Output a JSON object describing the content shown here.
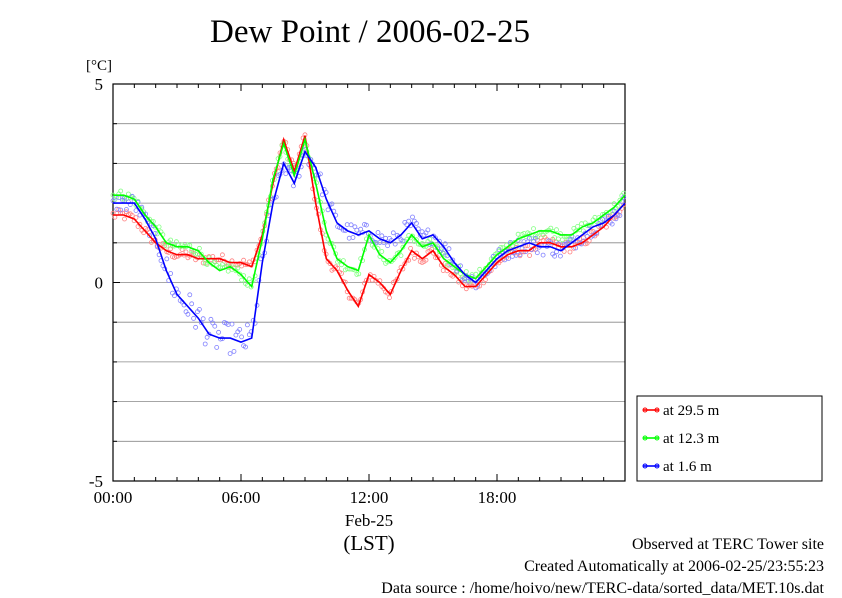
{
  "chart_data": {
    "type": "line",
    "title": "Dew Point / 2006-02-25",
    "ylabel": "[°C]",
    "xlabel": "(LST)",
    "date_label": "Feb-25",
    "ylim": [
      -5,
      5
    ],
    "xlim": [
      "00:00",
      "24:00"
    ],
    "x_ticks": [
      "00:00",
      "06:00",
      "12:00",
      "18:00"
    ],
    "y_ticks": [
      "5",
      "0",
      "-5"
    ],
    "grid": "horizontal",
    "legend_position": "right-bottom",
    "x_hours": [
      0,
      0.5,
      1,
      1.5,
      2,
      2.5,
      3,
      3.5,
      4,
      4.5,
      5,
      5.5,
      6,
      6.5,
      7,
      7.5,
      8,
      8.5,
      9,
      9.5,
      10,
      10.5,
      11,
      11.5,
      12,
      12.5,
      13,
      13.5,
      14,
      14.5,
      15,
      15.5,
      16,
      16.5,
      17,
      17.5,
      18,
      18.5,
      19,
      19.5,
      20,
      20.5,
      21,
      21.5,
      22,
      22.5,
      23,
      23.5,
      24
    ],
    "series": [
      {
        "name": "at 29.5 m",
        "color": "#ff0000",
        "values": [
          1.7,
          1.7,
          1.6,
          1.3,
          1.0,
          0.8,
          0.7,
          0.7,
          0.6,
          0.6,
          0.6,
          0.5,
          0.5,
          0.4,
          1.2,
          2.5,
          3.6,
          2.8,
          3.7,
          2.0,
          0.6,
          0.3,
          -0.2,
          -0.6,
          0.2,
          0.0,
          -0.3,
          0.3,
          0.8,
          0.6,
          0.8,
          0.4,
          0.2,
          -0.1,
          -0.1,
          0.2,
          0.5,
          0.7,
          0.8,
          0.8,
          1.0,
          1.0,
          0.9,
          0.9,
          1.0,
          1.2,
          1.4,
          1.7,
          2.0
        ]
      },
      {
        "name": "at 12.3 m",
        "color": "#00ff00",
        "values": [
          2.2,
          2.2,
          2.1,
          1.7,
          1.4,
          1.0,
          0.9,
          0.9,
          0.8,
          0.5,
          0.3,
          0.4,
          0.2,
          -0.1,
          1.1,
          2.6,
          3.5,
          2.7,
          3.6,
          2.5,
          1.3,
          0.6,
          0.4,
          0.3,
          1.2,
          0.7,
          0.5,
          0.8,
          1.2,
          0.9,
          1.0,
          0.6,
          0.4,
          0.2,
          0.1,
          0.4,
          0.7,
          0.9,
          1.1,
          1.2,
          1.3,
          1.3,
          1.2,
          1.2,
          1.4,
          1.5,
          1.7,
          1.9,
          2.2
        ]
      },
      {
        "name": "at 1.6 m",
        "color": "#0000ff",
        "values": [
          2.0,
          2.0,
          2.0,
          1.6,
          1.1,
          0.3,
          -0.3,
          -0.6,
          -0.9,
          -1.3,
          -1.4,
          -1.4,
          -1.5,
          -1.4,
          0.5,
          2.0,
          3.0,
          2.5,
          3.3,
          2.9,
          2.1,
          1.5,
          1.3,
          1.2,
          1.3,
          1.1,
          1.0,
          1.2,
          1.5,
          1.1,
          1.2,
          0.9,
          0.5,
          0.2,
          0.0,
          0.3,
          0.6,
          0.8,
          0.9,
          1.0,
          0.9,
          0.9,
          0.8,
          1.0,
          1.2,
          1.4,
          1.5,
          1.7,
          2.0
        ]
      }
    ]
  },
  "footer": {
    "line1": "Observed at TERC Tower site",
    "line2": "Created Automatically at 2006-02-25/23:55:23",
    "line3": "Data source : /home/hoivo/new/TERC-data/sorted_data/MET.10s.dat"
  }
}
